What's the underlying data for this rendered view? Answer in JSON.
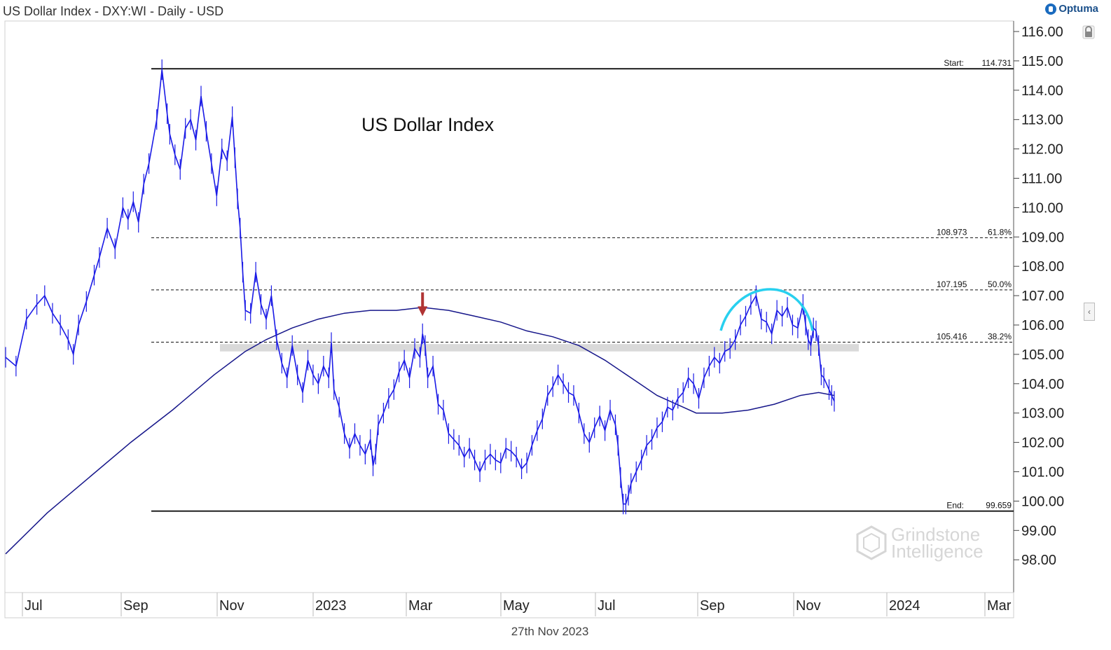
{
  "header": {
    "title": "US Dollar Index - DXY:WI - Daily - USD"
  },
  "logo": {
    "text": "Optuma"
  },
  "footer": {
    "date": "27th Nov 2023"
  },
  "watermark": {
    "line1": "Grindstone",
    "line2": "Intelligence"
  },
  "chart_data": {
    "type": "line",
    "title": "US Dollar Index",
    "xlabel": "",
    "ylabel": "",
    "ylim": [
      98.0,
      116.4
    ],
    "y_ticks": [
      "116.00",
      "115.00",
      "114.00",
      "113.00",
      "112.00",
      "111.00",
      "110.00",
      "109.00",
      "108.00",
      "107.00",
      "106.00",
      "105.00",
      "104.00",
      "103.00",
      "102.00",
      "101.00",
      "100.00",
      "99.00",
      "98.00"
    ],
    "x_ticks": [
      "Jul",
      "Sep",
      "Nov",
      "2023",
      "Mar",
      "May",
      "Jul",
      "Sep",
      "Nov",
      "2024",
      "Mar"
    ],
    "series": [
      {
        "kind": "price",
        "color": "#1a1ae6",
        "points": [
          [
            0,
            104.9
          ],
          [
            4,
            104.6
          ],
          [
            8,
            106.2
          ],
          [
            12,
            106.7
          ],
          [
            15,
            107.0
          ],
          [
            18,
            106.4
          ],
          [
            21,
            106.0
          ],
          [
            24,
            105.5
          ],
          [
            26,
            105.0
          ],
          [
            28,
            106.0
          ],
          [
            31,
            106.8
          ],
          [
            34,
            107.7
          ],
          [
            36,
            108.3
          ],
          [
            39,
            109.3
          ],
          [
            42,
            108.6
          ],
          [
            45,
            110.0
          ],
          [
            47,
            109.6
          ],
          [
            49,
            110.2
          ],
          [
            51,
            109.5
          ],
          [
            53,
            110.8
          ],
          [
            55,
            111.5
          ],
          [
            58,
            113.0
          ],
          [
            60,
            114.7
          ],
          [
            62,
            113.2
          ],
          [
            63,
            112.5
          ],
          [
            65,
            111.8
          ],
          [
            67,
            111.3
          ],
          [
            69,
            112.7
          ],
          [
            71,
            113.0
          ],
          [
            73,
            112.3
          ],
          [
            75,
            113.8
          ],
          [
            77,
            112.6
          ],
          [
            79,
            111.5
          ],
          [
            81,
            110.4
          ],
          [
            83,
            112.0
          ],
          [
            85,
            111.6
          ],
          [
            87,
            113.1
          ],
          [
            88,
            111.7
          ],
          [
            89,
            110.3
          ],
          [
            90,
            109.3
          ],
          [
            91,
            107.8
          ],
          [
            92,
            106.5
          ],
          [
            94,
            106.4
          ],
          [
            96,
            107.8
          ],
          [
            98,
            106.7
          ],
          [
            100,
            106.2
          ],
          [
            102,
            107.0
          ],
          [
            104,
            105.5
          ],
          [
            106,
            104.7
          ],
          [
            108,
            104.2
          ],
          [
            110,
            105.3
          ],
          [
            112,
            104.3
          ],
          [
            114,
            103.7
          ],
          [
            116,
            104.8
          ],
          [
            118,
            104.3
          ],
          [
            120,
            104.0
          ],
          [
            122,
            104.6
          ],
          [
            124,
            104.2
          ],
          [
            125,
            105.4
          ],
          [
            126,
            103.8
          ],
          [
            128,
            103.2
          ],
          [
            130,
            102.3
          ],
          [
            132,
            101.8
          ],
          [
            134,
            102.3
          ],
          [
            136,
            101.9
          ],
          [
            138,
            101.6
          ],
          [
            140,
            102.1
          ],
          [
            141,
            101.2
          ],
          [
            142,
            101.6
          ],
          [
            143,
            102.6
          ],
          [
            145,
            103.0
          ],
          [
            147,
            103.5
          ],
          [
            149,
            103.8
          ],
          [
            151,
            104.4
          ],
          [
            153,
            104.8
          ],
          [
            155,
            104.2
          ],
          [
            157,
            105.2
          ],
          [
            159,
            104.9
          ],
          [
            160,
            105.7
          ],
          [
            161,
            105.3
          ],
          [
            162,
            104.2
          ],
          [
            164,
            104.6
          ],
          [
            166,
            103.3
          ],
          [
            168,
            103.1
          ],
          [
            170,
            102.3
          ],
          [
            172,
            102.1
          ],
          [
            174,
            101.9
          ],
          [
            176,
            101.5
          ],
          [
            178,
            101.8
          ],
          [
            180,
            101.4
          ],
          [
            182,
            101.0
          ],
          [
            184,
            101.4
          ],
          [
            186,
            101.6
          ],
          [
            188,
            101.4
          ],
          [
            190,
            101.3
          ],
          [
            192,
            101.8
          ],
          [
            194,
            101.7
          ],
          [
            196,
            101.5
          ],
          [
            198,
            101.1
          ],
          [
            200,
            101.3
          ],
          [
            202,
            101.9
          ],
          [
            204,
            102.4
          ],
          [
            206,
            102.8
          ],
          [
            208,
            103.6
          ],
          [
            210,
            103.9
          ],
          [
            212,
            104.3
          ],
          [
            214,
            104.0
          ],
          [
            216,
            103.7
          ],
          [
            218,
            103.6
          ],
          [
            220,
            103.0
          ],
          [
            222,
            102.3
          ],
          [
            224,
            102.0
          ],
          [
            226,
            102.5
          ],
          [
            228,
            102.9
          ],
          [
            230,
            102.4
          ],
          [
            232,
            103.1
          ],
          [
            234,
            102.6
          ],
          [
            235,
            101.9
          ],
          [
            236,
            100.8
          ],
          [
            237,
            99.9
          ],
          [
            238,
            99.9
          ],
          [
            239,
            100.2
          ],
          [
            240,
            100.6
          ],
          [
            242,
            101.0
          ],
          [
            244,
            101.4
          ],
          [
            246,
            101.9
          ],
          [
            248,
            102.1
          ],
          [
            250,
            102.5
          ],
          [
            252,
            102.7
          ],
          [
            254,
            103.2
          ],
          [
            256,
            103.1
          ],
          [
            258,
            103.5
          ],
          [
            260,
            103.7
          ],
          [
            262,
            104.2
          ],
          [
            264,
            104.0
          ],
          [
            266,
            103.5
          ],
          [
            268,
            104.2
          ],
          [
            270,
            104.6
          ],
          [
            272,
            104.9
          ],
          [
            274,
            104.7
          ],
          [
            276,
            105.1
          ],
          [
            278,
            105.2
          ],
          [
            280,
            105.5
          ],
          [
            282,
            106.0
          ],
          [
            284,
            106.3
          ],
          [
            286,
            106.7
          ],
          [
            288,
            107.0
          ],
          [
            290,
            106.2
          ],
          [
            292,
            106.1
          ],
          [
            294,
            105.7
          ],
          [
            296,
            106.5
          ],
          [
            298,
            106.3
          ],
          [
            300,
            106.6
          ],
          [
            302,
            106.0
          ],
          [
            304,
            105.9
          ],
          [
            306,
            106.7
          ],
          [
            307,
            106.0
          ],
          [
            308,
            105.5
          ],
          [
            309,
            105.3
          ],
          [
            310,
            105.9
          ],
          [
            311,
            105.8
          ],
          [
            312,
            105.3
          ],
          [
            313,
            104.3
          ],
          [
            314,
            104.2
          ],
          [
            316,
            103.8
          ],
          [
            317,
            103.6
          ],
          [
            318,
            103.4
          ]
        ]
      },
      {
        "kind": "moving-average",
        "color": "#16168a",
        "points": [
          [
            0,
            98.2
          ],
          [
            16,
            99.6
          ],
          [
            32,
            100.8
          ],
          [
            48,
            102.0
          ],
          [
            64,
            103.1
          ],
          [
            80,
            104.3
          ],
          [
            92,
            105.1
          ],
          [
            100,
            105.5
          ],
          [
            110,
            105.9
          ],
          [
            120,
            106.2
          ],
          [
            130,
            106.4
          ],
          [
            140,
            106.5
          ],
          [
            150,
            106.5
          ],
          [
            160,
            106.6
          ],
          [
            170,
            106.5
          ],
          [
            180,
            106.3
          ],
          [
            190,
            106.1
          ],
          [
            200,
            105.8
          ],
          [
            210,
            105.6
          ],
          [
            220,
            105.3
          ],
          [
            230,
            104.8
          ],
          [
            240,
            104.2
          ],
          [
            250,
            103.6
          ],
          [
            260,
            103.2
          ],
          [
            265,
            103.0
          ],
          [
            275,
            103.0
          ],
          [
            285,
            103.1
          ],
          [
            295,
            103.3
          ],
          [
            305,
            103.6
          ],
          [
            312,
            103.7
          ],
          [
            318,
            103.6
          ]
        ]
      }
    ],
    "levels": [
      {
        "name": "Start",
        "value": 114.731,
        "label": "Start:",
        "value_text": "114.731",
        "style": "solid"
      },
      {
        "name": "61.8%",
        "value": 108.973,
        "label": "61.8%",
        "value_text": "108.973",
        "style": "dashed"
      },
      {
        "name": "50.0%",
        "value": 107.195,
        "label": "50.0%",
        "value_text": "107.195",
        "style": "dashed"
      },
      {
        "name": "38.2%",
        "value": 105.416,
        "label": "38.2%",
        "value_text": "105.416",
        "style": "dashed"
      },
      {
        "name": "End",
        "value": 99.659,
        "label": "End:",
        "value_text": "99.659",
        "style": "solid"
      }
    ],
    "annotations": {
      "support_band": {
        "from": 105.1,
        "to": 105.35,
        "color": "#d9d9d9"
      },
      "arrow": {
        "x": 160,
        "y": 106.3,
        "color": "#b03434"
      },
      "arc": {
        "color": "#28d0ef"
      }
    }
  }
}
